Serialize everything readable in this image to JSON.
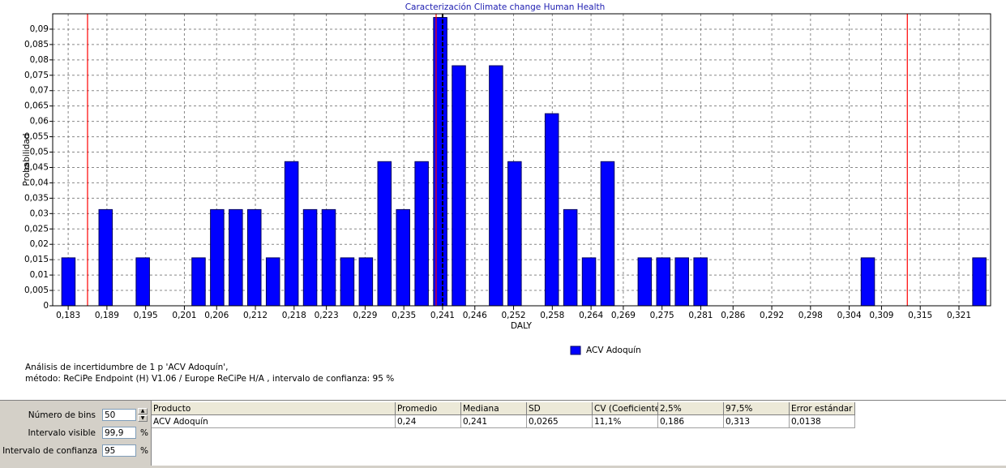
{
  "chart_data": {
    "type": "histogram",
    "title": "Caracterización Climate change Human Health",
    "x_label": "DALY",
    "y_label": "Probabilidad",
    "bins": [
      0.1816,
      0.18448,
      0.18736,
      0.19024,
      0.19312,
      0.196,
      0.19888,
      0.20176,
      0.20464,
      0.20752,
      0.2104,
      0.21328,
      0.21616,
      0.21904,
      0.22192,
      0.2248,
      0.22768,
      0.23056,
      0.23344,
      0.23632,
      0.2392,
      0.24208,
      0.24496,
      0.24784,
      0.25072,
      0.2536,
      0.25648,
      0.25936,
      0.26224,
      0.26512,
      0.268,
      0.27088,
      0.27376,
      0.27664,
      0.27952,
      0.2824,
      0.28528,
      0.28816,
      0.29104,
      0.29392,
      0.2968,
      0.29968,
      0.30256,
      0.30544,
      0.30832,
      0.3112,
      0.31408,
      0.31696,
      0.31984,
      0.32272,
      0.3256
    ],
    "series": [
      {
        "name": "ACV Adoquín",
        "color": "#0000ff",
        "values": [
          0.0156,
          0,
          0.0313,
          0,
          0.0156,
          0,
          0,
          0.0156,
          0.0313,
          0.0313,
          0.0313,
          0.0156,
          0.0469,
          0.0313,
          0.0313,
          0.0156,
          0.0156,
          0.0469,
          0.0313,
          0.0469,
          0.0938,
          0.0781,
          0,
          0.0781,
          0.0469,
          0,
          0.0625,
          0.0313,
          0.0156,
          0.0469,
          0,
          0.0156,
          0.0156,
          0.0156,
          0.0156,
          0,
          0,
          0,
          0,
          0,
          0,
          0,
          0,
          0.0156,
          0,
          0,
          0,
          0,
          0,
          0.0156
        ]
      }
    ],
    "xlim": [
      0.1806,
      0.3259
    ],
    "ylim": [
      0,
      0.095
    ],
    "xticks": [
      {
        "value": 0.183,
        "label": "0,183"
      },
      {
        "value": 0.189,
        "label": "0,189"
      },
      {
        "value": 0.195,
        "label": "0,195"
      },
      {
        "value": 0.201,
        "label": "0,201"
      },
      {
        "value": 0.206,
        "label": "0,206"
      },
      {
        "value": 0.212,
        "label": "0,212"
      },
      {
        "value": 0.218,
        "label": "0,218"
      },
      {
        "value": 0.223,
        "label": "0,223"
      },
      {
        "value": 0.229,
        "label": "0,229"
      },
      {
        "value": 0.235,
        "label": "0,235"
      },
      {
        "value": 0.241,
        "label": "0,241"
      },
      {
        "value": 0.246,
        "label": "0,246"
      },
      {
        "value": 0.252,
        "label": "0,252"
      },
      {
        "value": 0.258,
        "label": "0,258"
      },
      {
        "value": 0.264,
        "label": "0,264"
      },
      {
        "value": 0.269,
        "label": "0,269"
      },
      {
        "value": 0.275,
        "label": "0,275"
      },
      {
        "value": 0.281,
        "label": "0,281"
      },
      {
        "value": 0.286,
        "label": "0,286"
      },
      {
        "value": 0.292,
        "label": "0,292"
      },
      {
        "value": 0.298,
        "label": "0,298"
      },
      {
        "value": 0.304,
        "label": "0,304"
      },
      {
        "value": 0.309,
        "label": "0,309"
      },
      {
        "value": 0.315,
        "label": "0,315"
      },
      {
        "value": 0.321,
        "label": "0,321"
      }
    ],
    "yticks": [
      0,
      {
        "value": 0.005,
        "label": "0,005"
      },
      {
        "value": 0.01,
        "label": "0,01"
      },
      {
        "value": 0.015,
        "label": "0,015"
      },
      {
        "value": 0.02,
        "label": "0,02"
      },
      {
        "value": 0.025,
        "label": "0,025"
      },
      {
        "value": 0.03,
        "label": "0,03"
      },
      {
        "value": 0.035,
        "label": "0,035"
      },
      {
        "value": 0.04,
        "label": "0,04"
      },
      {
        "value": 0.045,
        "label": "0,045"
      },
      {
        "value": 0.05,
        "label": "0,05"
      },
      {
        "value": 0.055,
        "label": "0,055"
      },
      {
        "value": 0.06,
        "label": "0,06"
      },
      {
        "value": 0.065,
        "label": "0,065"
      },
      {
        "value": 0.07,
        "label": "0,07"
      },
      {
        "value": 0.075,
        "label": "0,075"
      },
      {
        "value": 0.08,
        "label": "0,08"
      },
      {
        "value": 0.085,
        "label": "0,085"
      },
      {
        "value": 0.09,
        "label": "0,09"
      }
    ],
    "grid": true,
    "legend": "bottom",
    "reference_lines": [
      {
        "value": 0.186,
        "color": "#ff0000"
      },
      {
        "value": 0.24,
        "color": "#ff0000"
      },
      {
        "value": 0.241,
        "color": "#000000",
        "style": "dashed"
      },
      {
        "value": 0.313,
        "color": "#ff0000"
      }
    ]
  },
  "notes": [
    "Análisis de incertidumbre de  1 p 'ACV Adoquín',",
    "método: ReCiPe Endpoint (H) V1.06 / Europe ReCiPe H/A , intervalo de confianza: 95 %"
  ],
  "controls": [
    {
      "label": "Número de bins",
      "value": "50"
    },
    {
      "label": "Intervalo visible",
      "value": "99,9",
      "unit": "%"
    },
    {
      "label": "Intervalo de confianza",
      "value": "95",
      "unit": "%"
    }
  ],
  "table": {
    "header": [
      "Producto",
      "Promedio",
      "Mediana",
      "SD",
      "CV (Coeficiente",
      "2,5%",
      "97,5%",
      "Error estándar ("
    ],
    "rows": [
      [
        "ACV Adoquín",
        "0,24",
        "0,241",
        "0,0265",
        "11,1%",
        "0,186",
        "0,313",
        "0,0138"
      ]
    ]
  }
}
